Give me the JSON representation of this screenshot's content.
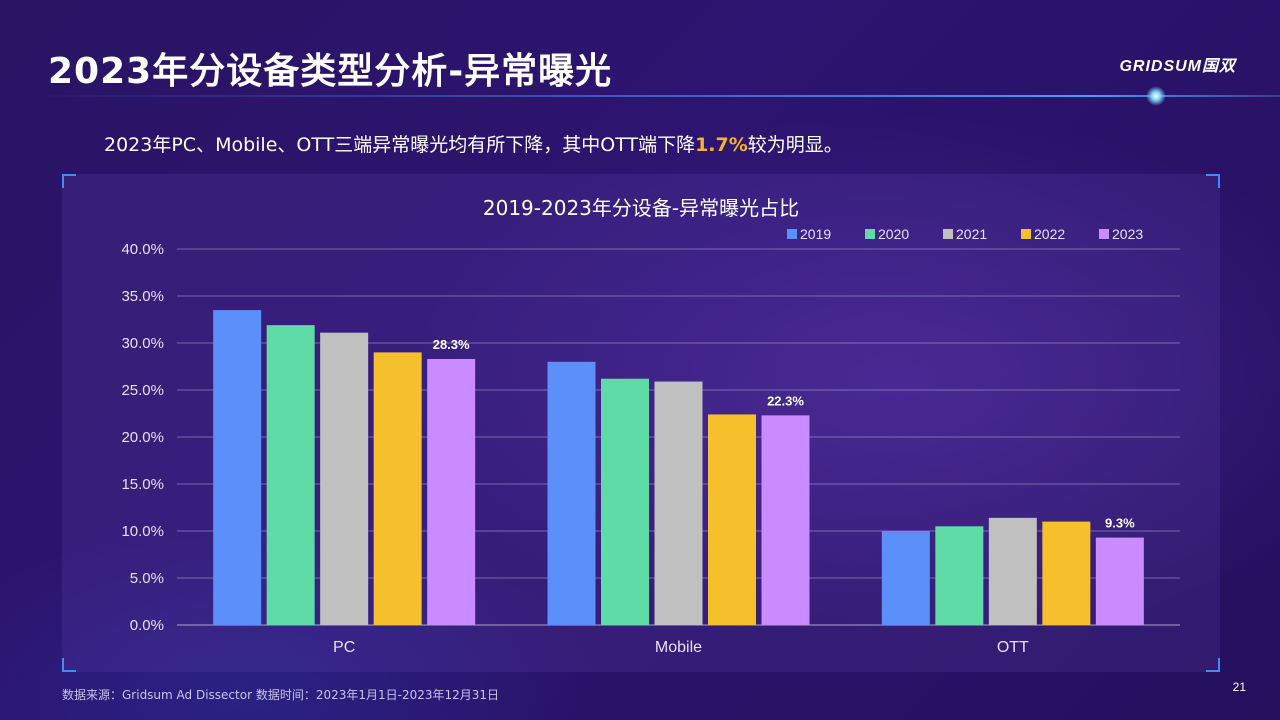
{
  "page": {
    "title": "2023年分设备类型分析-异常曝光",
    "logo": "GRIDSUM国双",
    "subtitle_main": "2023年PC、Mobile、OTT三端异常曝光均有所下降，其中OTT端下降",
    "subtitle_highlight": "1.7%",
    "subtitle_end": "较为明显。",
    "footer": "数据来源：Gridsum Ad Dissector 数据时间：2023年1月1日-2023年12月31日",
    "page_number": "21"
  },
  "chart_data": {
    "type": "bar",
    "title": "2019-2023年分设备-异常曝光占比",
    "categories": [
      "PC",
      "Mobile",
      "OTT"
    ],
    "series": [
      {
        "name": "2019",
        "color": "#5b8ff9",
        "values": [
          33.5,
          28.0,
          10.0
        ]
      },
      {
        "name": "2020",
        "color": "#5fdba8",
        "values": [
          31.9,
          26.2,
          10.5
        ]
      },
      {
        "name": "2021",
        "color": "#c0c0c0",
        "values": [
          31.1,
          25.9,
          11.4
        ]
      },
      {
        "name": "2022",
        "color": "#f6c02c",
        "values": [
          29.0,
          22.4,
          11.0
        ]
      },
      {
        "name": "2023",
        "color": "#c98bff",
        "values": [
          28.3,
          22.3,
          9.3
        ]
      }
    ],
    "data_labels": {
      "series": "2023",
      "labels": [
        "28.3%",
        "22.3%",
        "9.3%"
      ]
    },
    "ylim": [
      0,
      40
    ],
    "yticks": [
      "0.0%",
      "5.0%",
      "10.0%",
      "15.0%",
      "20.0%",
      "25.0%",
      "30.0%",
      "35.0%",
      "40.0%"
    ],
    "grid": true,
    "legend": "top-right"
  }
}
